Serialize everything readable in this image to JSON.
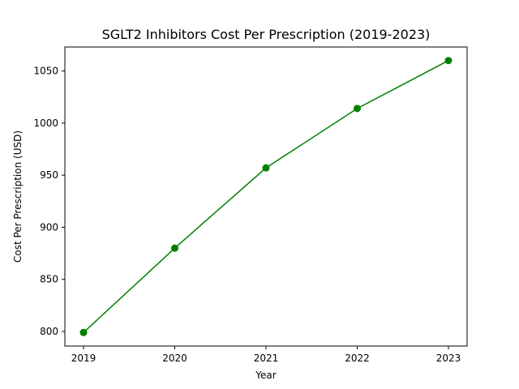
{
  "chart_data": {
    "type": "line",
    "title": "SGLT2 Inhibitors Cost Per Prescription (2019-2023)",
    "xlabel": "Year",
    "ylabel": "Cost Per Prescription (USD)",
    "x": [
      "2019",
      "2020",
      "2021",
      "2022",
      "2023"
    ],
    "series": [
      {
        "values": [
          799,
          880,
          957,
          1014,
          1060
        ],
        "color": "#008000",
        "marker": "circle"
      }
    ],
    "yticks": [
      800,
      850,
      900,
      950,
      1000,
      1050
    ],
    "ylim": [
      786,
      1073
    ],
    "grid": false,
    "legend": "none"
  }
}
